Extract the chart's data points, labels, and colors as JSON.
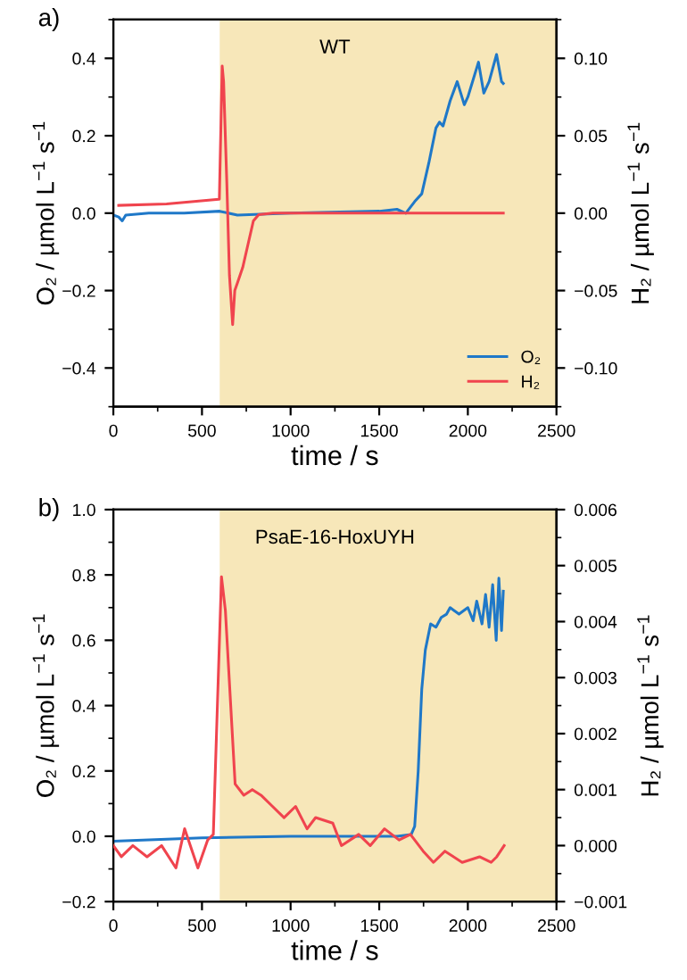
{
  "chart_data": [
    {
      "type": "line",
      "title": "WT",
      "annotations": [
        "a)"
      ],
      "xlabel": "time / s",
      "ylabel": "O₂ / µmol L$^{−1}$ s$^{−1}$",
      "y2label": "H₂ / µmol L$^{−1}$ s$^{−1}$",
      "xlim": [
        0,
        2500
      ],
      "xticks": [
        0,
        {
          "value": 250,
          "label": null
        },
        500,
        {
          "value": 750,
          "label": null
        },
        1000,
        {
          "value": 1250,
          "label": null
        },
        1500,
        {
          "value": 1750,
          "label": null
        },
        2000,
        {
          "value": 2250,
          "label": null
        },
        2500
      ],
      "ylim": [
        -0.5,
        0.5
      ],
      "yticks": [
        {
          "value": -0.5,
          "label": null
        },
        {
          "value": -0.4,
          "label": "−0.4"
        },
        {
          "value": -0.3,
          "label": null
        },
        {
          "value": -0.2,
          "label": "−0.2"
        },
        {
          "value": -0.1,
          "label": null
        },
        {
          "value": 0.0,
          "label": "0.0"
        },
        {
          "value": 0.1,
          "label": null
        },
        {
          "value": 0.2,
          "label": "0.2"
        },
        {
          "value": 0.3,
          "label": null
        },
        {
          "value": 0.4,
          "label": "0.4"
        },
        {
          "value": 0.5,
          "label": null
        }
      ],
      "y2lim": [
        -0.125,
        0.125
      ],
      "y2ticks": [
        {
          "value": -0.125,
          "label": null
        },
        {
          "value": -0.1,
          "label": "−0.10"
        },
        {
          "value": -0.075,
          "label": null
        },
        {
          "value": -0.05,
          "label": "−0.05"
        },
        {
          "value": -0.025,
          "label": null
        },
        {
          "value": 0.0,
          "label": "0.00"
        },
        {
          "value": 0.025,
          "label": null
        },
        {
          "value": 0.05,
          "label": "0.05"
        },
        {
          "value": 0.075,
          "label": null
        },
        {
          "value": 0.1,
          "label": "0.10"
        },
        {
          "value": 0.125,
          "label": null
        }
      ],
      "bands": [
        {
          "axis": "x",
          "from": 600,
          "to": 2500,
          "color": "#f7e7b9"
        }
      ],
      "legend": "bottom right",
      "series": [
        {
          "name": "O₂",
          "color": "#1f78c8",
          "x": [
            0,
            30,
            50,
            70,
            200,
            400,
            600,
            700,
            1000,
            1500,
            1600,
            1650,
            1700,
            1740,
            1780,
            1820,
            1840,
            1860,
            1900,
            1940,
            1980,
            2000,
            2060,
            2090,
            2120,
            2162,
            2190,
            2200
          ],
          "values": [
            -0.005,
            -0.01,
            -0.02,
            -0.005,
            0.0,
            0.0,
            0.005,
            -0.005,
            0.0,
            0.005,
            0.01,
            0.0,
            0.03,
            0.05,
            0.13,
            0.22,
            0.235,
            0.225,
            0.29,
            0.34,
            0.28,
            0.3,
            0.39,
            0.31,
            0.34,
            0.41,
            0.34,
            0.335
          ]
        },
        {
          "name": "H₂",
          "color": "#f0444e",
          "axis": "y2",
          "x": [
            30,
            300,
            595,
            598,
            614,
            622,
            640,
            655,
            673,
            685,
            700,
            730,
            760,
            790,
            820,
            900,
            1500,
            2200
          ],
          "values": [
            0.005,
            0.006,
            0.009,
            0.009,
            0.095,
            0.085,
            0.02,
            -0.04,
            -0.072,
            -0.05,
            -0.045,
            -0.035,
            -0.02,
            -0.005,
            -0.001,
            0.0,
            0.0,
            0.0
          ]
        }
      ]
    },
    {
      "type": "line",
      "title": "PsaE-16-HoxUYH",
      "annotations": [
        "b)"
      ],
      "xlabel": "time / s",
      "ylabel": "O₂ / µmol L$^{−1}$ s$^{−1}$",
      "y2label": "H₂ / µmol L$^{−1}$ s$^{−1}$",
      "xlim": [
        0,
        2500
      ],
      "xticks": [
        0,
        {
          "value": 250,
          "label": null
        },
        500,
        {
          "value": 750,
          "label": null
        },
        1000,
        {
          "value": 1250,
          "label": null
        },
        1500,
        {
          "value": 1750,
          "label": null
        },
        2000,
        {
          "value": 2250,
          "label": null
        },
        2500
      ],
      "ylim": [
        -0.2,
        1.0
      ],
      "yticks": [
        {
          "value": -0.2,
          "label": "−0.2"
        },
        {
          "value": -0.1,
          "label": null
        },
        {
          "value": 0.0,
          "label": "0.0"
        },
        {
          "value": 0.1,
          "label": null
        },
        0.2,
        {
          "value": 0.3,
          "label": null
        },
        0.4,
        {
          "value": 0.5,
          "label": null
        },
        0.6,
        {
          "value": 0.7,
          "label": null
        },
        0.8,
        {
          "value": 0.9,
          "label": null
        },
        {
          "value": 1.0,
          "label": "1.0"
        }
      ],
      "y2lim": [
        -0.001,
        0.006
      ],
      "y2ticks": [
        {
          "value": -0.001,
          "label": "−0.001"
        },
        {
          "value": -0.0005,
          "label": null
        },
        {
          "value": 0.0,
          "label": "0.000"
        },
        {
          "value": 0.0005,
          "label": null
        },
        0.001,
        {
          "value": 0.0015,
          "label": null
        },
        0.002,
        {
          "value": 0.0025,
          "label": null
        },
        0.003,
        {
          "value": 0.0035,
          "label": null
        },
        0.004,
        {
          "value": 0.0045,
          "label": null
        },
        0.005,
        {
          "value": 0.0055,
          "label": null
        },
        0.006
      ],
      "bands": [
        {
          "axis": "x",
          "from": 600,
          "to": 2500,
          "color": "#f7e7b9"
        }
      ],
      "series": [
        {
          "color": "#1f78c8",
          "x": [
            0,
            500,
            1000,
            1600,
            1680,
            1700,
            1720,
            1740,
            1760,
            1790,
            1820,
            1850,
            1880,
            1900,
            1950,
            2000,
            2030,
            2050,
            2080,
            2100,
            2120,
            2140,
            2160,
            2175,
            2190,
            2200
          ],
          "values": [
            -0.015,
            -0.005,
            0.0,
            0.0,
            0.005,
            0.03,
            0.2,
            0.45,
            0.57,
            0.65,
            0.64,
            0.67,
            0.68,
            0.7,
            0.68,
            0.7,
            0.66,
            0.72,
            0.65,
            0.74,
            0.64,
            0.77,
            0.6,
            0.79,
            0.63,
            0.75
          ]
        },
        {
          "color": "#f0444e",
          "axis": "y2",
          "x": [
            0,
            45,
            110,
            190,
            272,
            353,
            402,
            477,
            532,
            564,
            610,
            632,
            687,
            736,
            784,
            833,
            898,
            963,
            1028,
            1093,
            1141,
            1238,
            1287,
            1384,
            1449,
            1530,
            1612,
            1676,
            1748,
            1806,
            1871,
            1968,
            2066,
            2131,
            2163,
            2205
          ],
          "values": [
            0.0,
            -0.0002,
            0.0,
            -0.0002,
            0.0,
            -0.0004,
            0.0003,
            -0.0004,
            0.0001,
            0.0002,
            0.0048,
            0.0042,
            0.0011,
            0.0009,
            0.001,
            0.0009,
            0.0007,
            0.0005,
            0.0007,
            0.0003,
            0.0005,
            0.0004,
            0.0,
            0.0002,
            0.0,
            0.0003,
            0.0001,
            0.0002,
            -0.0001,
            -0.0003,
            -0.0001,
            -0.0003,
            -0.0002,
            -0.0003,
            -0.0002,
            0.0
          ]
        }
      ]
    }
  ]
}
